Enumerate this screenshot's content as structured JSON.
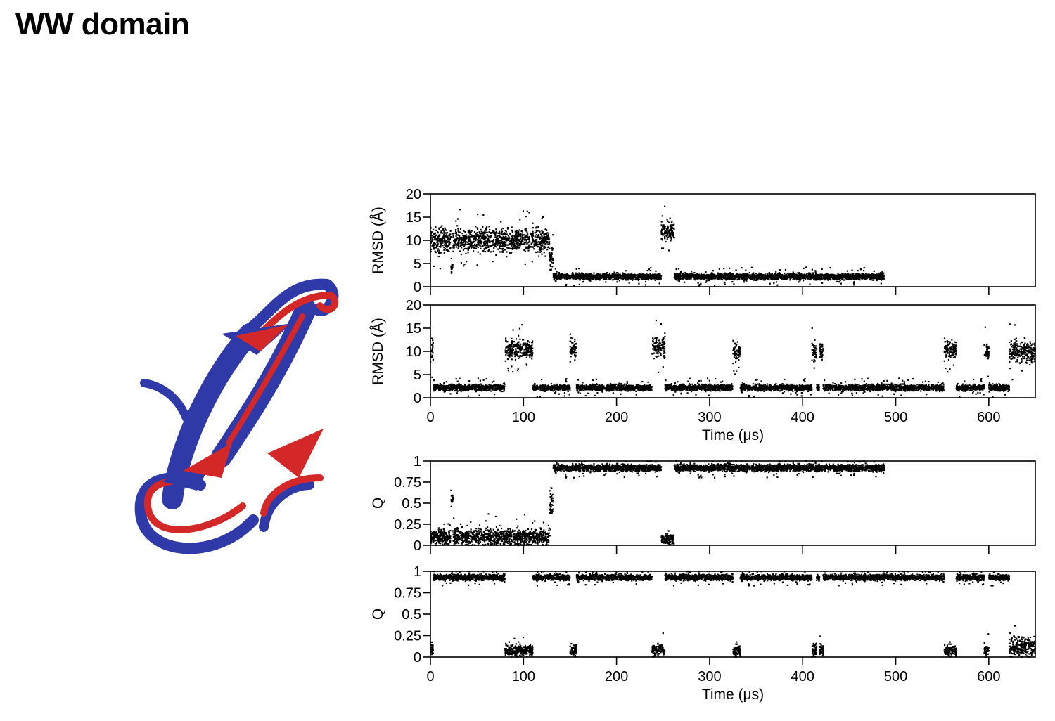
{
  "title": "WW domain",
  "colors": {
    "structure_a": "#2f3aa8",
    "structure_b": "#d42828",
    "points": "#000000"
  },
  "figure": {
    "name": "protein-ribbon-overlay"
  },
  "chart_data": [
    {
      "type": "scatter",
      "panel": "rmsd-run-1",
      "ylabel": "RMSD (Å)",
      "xlabel": "",
      "xlim": [
        0,
        650
      ],
      "ylim": [
        0,
        20
      ],
      "yticks": [
        "0",
        "5",
        "10",
        "15",
        "20"
      ],
      "xticks": [
        0,
        100,
        200,
        300,
        400,
        500,
        600
      ],
      "xticklabels": [],
      "grid": false,
      "data_end": 488,
      "segments": [
        {
          "x": [
            0,
            22
          ],
          "y": 10,
          "spread": 3.5
        },
        {
          "x": [
            22,
            24
          ],
          "y": 4,
          "spread": 1.5
        },
        {
          "x": [
            24,
            128
          ],
          "y": 10,
          "spread": 3.5
        },
        {
          "x": [
            128,
            132
          ],
          "y": 6,
          "spread": 3
        },
        {
          "x": [
            132,
            248
          ],
          "y": 2.2,
          "spread": 1
        },
        {
          "x": [
            248,
            262
          ],
          "y": 12,
          "spread": 3
        },
        {
          "x": [
            262,
            488
          ],
          "y": 2.2,
          "spread": 1
        }
      ]
    },
    {
      "type": "scatter",
      "panel": "rmsd-run-2",
      "ylabel": "RMSD (Å)",
      "xlabel": "Time (μs)",
      "xlim": [
        0,
        650
      ],
      "ylim": [
        0,
        20
      ],
      "yticks": [
        "0",
        "5",
        "10",
        "15",
        "20"
      ],
      "xticks": [
        0,
        100,
        200,
        300,
        400,
        500,
        600
      ],
      "xticklabels": [
        "0",
        "100",
        "200",
        "300",
        "400",
        "500",
        "600"
      ],
      "grid": false,
      "data_end": 650,
      "segments": [
        {
          "x": [
            0,
            3
          ],
          "y": 10,
          "spread": 4
        },
        {
          "x": [
            3,
            80
          ],
          "y": 2.2,
          "spread": 1
        },
        {
          "x": [
            80,
            110
          ],
          "y": 10.5,
          "spread": 3
        },
        {
          "x": [
            110,
            150
          ],
          "y": 2.2,
          "spread": 1
        },
        {
          "x": [
            150,
            157
          ],
          "y": 10.5,
          "spread": 3
        },
        {
          "x": [
            157,
            238
          ],
          "y": 2.2,
          "spread": 1
        },
        {
          "x": [
            238,
            252
          ],
          "y": 11,
          "spread": 3
        },
        {
          "x": [
            252,
            325
          ],
          "y": 2.2,
          "spread": 1
        },
        {
          "x": [
            325,
            333
          ],
          "y": 10,
          "spread": 3
        },
        {
          "x": [
            333,
            410
          ],
          "y": 2.2,
          "spread": 1
        },
        {
          "x": [
            410,
            415
          ],
          "y": 10,
          "spread": 3
        },
        {
          "x": [
            415,
            418
          ],
          "y": 2.2,
          "spread": 1
        },
        {
          "x": [
            418,
            422
          ],
          "y": 10,
          "spread": 3
        },
        {
          "x": [
            422,
            552
          ],
          "y": 2.2,
          "spread": 1
        },
        {
          "x": [
            552,
            565
          ],
          "y": 10.5,
          "spread": 3
        },
        {
          "x": [
            565,
            595
          ],
          "y": 2.2,
          "spread": 1
        },
        {
          "x": [
            595,
            600
          ],
          "y": 10,
          "spread": 3
        },
        {
          "x": [
            600,
            622
          ],
          "y": 2.2,
          "spread": 1
        },
        {
          "x": [
            622,
            650
          ],
          "y": 10,
          "spread": 3.5
        }
      ]
    },
    {
      "type": "scatter",
      "panel": "q-run-1",
      "ylabel": "Q",
      "xlabel": "",
      "xlim": [
        0,
        650
      ],
      "ylim": [
        0,
        1
      ],
      "yticks": [
        "0",
        "0.25",
        "0.5",
        "0.75",
        "1"
      ],
      "xticks": [
        0,
        100,
        200,
        300,
        400,
        500,
        600
      ],
      "xticklabels": [],
      "grid": false,
      "data_end": 488,
      "segments": [
        {
          "x": [
            0,
            22
          ],
          "y": 0.1,
          "spread": 0.12
        },
        {
          "x": [
            22,
            24
          ],
          "y": 0.55,
          "spread": 0.15
        },
        {
          "x": [
            24,
            128
          ],
          "y": 0.1,
          "spread": 0.14
        },
        {
          "x": [
            128,
            132
          ],
          "y": 0.5,
          "spread": 0.25
        },
        {
          "x": [
            132,
            248
          ],
          "y": 0.92,
          "spread": 0.06
        },
        {
          "x": [
            248,
            262
          ],
          "y": 0.08,
          "spread": 0.1
        },
        {
          "x": [
            262,
            488
          ],
          "y": 0.92,
          "spread": 0.06
        }
      ]
    },
    {
      "type": "scatter",
      "panel": "q-run-2",
      "ylabel": "Q",
      "xlabel": "Time (μs)",
      "xlim": [
        0,
        650
      ],
      "ylim": [
        0,
        1
      ],
      "yticks": [
        "0",
        "0.25",
        "0.5",
        "0.75",
        "1"
      ],
      "xticks": [
        0,
        100,
        200,
        300,
        400,
        500,
        600
      ],
      "xticklabels": [
        "0",
        "100",
        "200",
        "300",
        "400",
        "500",
        "600"
      ],
      "grid": false,
      "data_end": 650,
      "segments": [
        {
          "x": [
            0,
            3
          ],
          "y": 0.1,
          "spread": 0.12
        },
        {
          "x": [
            3,
            80
          ],
          "y": 0.93,
          "spread": 0.05
        },
        {
          "x": [
            80,
            110
          ],
          "y": 0.08,
          "spread": 0.1
        },
        {
          "x": [
            110,
            150
          ],
          "y": 0.93,
          "spread": 0.05
        },
        {
          "x": [
            150,
            157
          ],
          "y": 0.08,
          "spread": 0.1
        },
        {
          "x": [
            157,
            238
          ],
          "y": 0.93,
          "spread": 0.05
        },
        {
          "x": [
            238,
            252
          ],
          "y": 0.08,
          "spread": 0.1
        },
        {
          "x": [
            252,
            325
          ],
          "y": 0.93,
          "spread": 0.05
        },
        {
          "x": [
            325,
            333
          ],
          "y": 0.08,
          "spread": 0.1
        },
        {
          "x": [
            333,
            410
          ],
          "y": 0.93,
          "spread": 0.05
        },
        {
          "x": [
            410,
            415
          ],
          "y": 0.08,
          "spread": 0.1
        },
        {
          "x": [
            415,
            418
          ],
          "y": 0.93,
          "spread": 0.05
        },
        {
          "x": [
            418,
            422
          ],
          "y": 0.08,
          "spread": 0.1
        },
        {
          "x": [
            422,
            552
          ],
          "y": 0.93,
          "spread": 0.05
        },
        {
          "x": [
            552,
            565
          ],
          "y": 0.08,
          "spread": 0.1
        },
        {
          "x": [
            565,
            595
          ],
          "y": 0.93,
          "spread": 0.05
        },
        {
          "x": [
            595,
            600
          ],
          "y": 0.08,
          "spread": 0.1
        },
        {
          "x": [
            600,
            622
          ],
          "y": 0.93,
          "spread": 0.05
        },
        {
          "x": [
            622,
            650
          ],
          "y": 0.12,
          "spread": 0.15
        }
      ]
    }
  ]
}
